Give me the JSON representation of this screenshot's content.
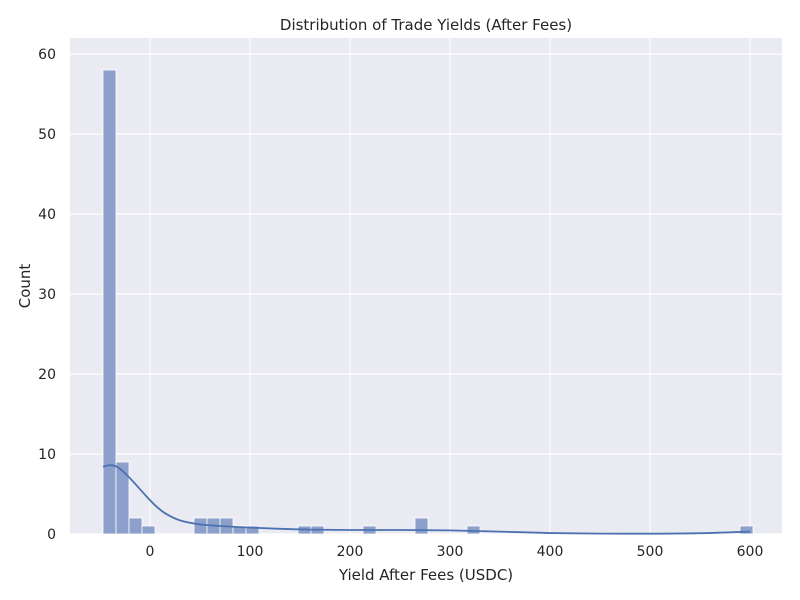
{
  "chart_data": {
    "type": "bar",
    "subtype": "histogram_with_kde",
    "title": "Distribution of Trade Yields (After Fees)",
    "xlabel": "Yield After Fees (USDC)",
    "ylabel": "Count",
    "xlim": [
      -80,
      632
    ],
    "ylim": [
      0,
      62
    ],
    "xticks": [
      0,
      100,
      200,
      300,
      400,
      500,
      600
    ],
    "yticks": [
      0,
      10,
      20,
      30,
      40,
      50,
      60
    ],
    "grid": true,
    "bin_width": 13,
    "bins": [
      {
        "x_start": -47,
        "count": 58
      },
      {
        "x_start": -34,
        "count": 9
      },
      {
        "x_start": -21,
        "count": 2
      },
      {
        "x_start": -8,
        "count": 1
      },
      {
        "x_start": 44,
        "count": 2
      },
      {
        "x_start": 57,
        "count": 2
      },
      {
        "x_start": 70,
        "count": 2
      },
      {
        "x_start": 83,
        "count": 1
      },
      {
        "x_start": 96,
        "count": 1
      },
      {
        "x_start": 148,
        "count": 1
      },
      {
        "x_start": 161,
        "count": 1
      },
      {
        "x_start": 213,
        "count": 1
      },
      {
        "x_start": 265,
        "count": 2
      },
      {
        "x_start": 317,
        "count": 1
      },
      {
        "x_start": 590,
        "count": 1
      }
    ],
    "kde": {
      "x": [
        -47,
        -40,
        -33,
        -25,
        -15,
        -5,
        5,
        15,
        30,
        50,
        70,
        100,
        130,
        160,
        200,
        250,
        300,
        350,
        400,
        450,
        500,
        550,
        600
      ],
      "y": [
        8.4,
        8.6,
        8.4,
        7.6,
        6.3,
        4.9,
        3.6,
        2.6,
        1.7,
        1.2,
        1.0,
        0.8,
        0.65,
        0.55,
        0.5,
        0.5,
        0.45,
        0.3,
        0.12,
        0.05,
        0.04,
        0.1,
        0.3
      ]
    },
    "colors": {
      "bar_fill": "#8da0cb",
      "bar_stroke": "#ffffff",
      "kde_line": "#4c72b0",
      "plot_background": "#eaeaf2",
      "grid": "#ffffff",
      "text": "#262626"
    }
  }
}
